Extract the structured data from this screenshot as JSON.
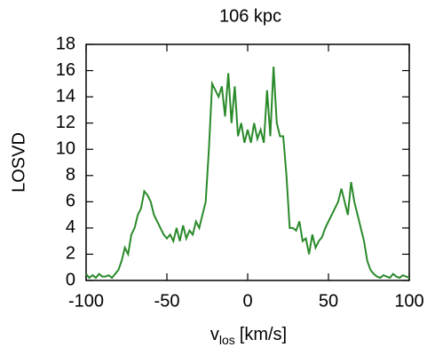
{
  "chart_data": {
    "type": "line",
    "title": "106 kpc",
    "xlabel": {
      "base": "v",
      "subscript": "los",
      "rest": "[km/s]"
    },
    "ylabel": "LOSVD",
    "x": [
      -100,
      -98,
      -96,
      -94,
      -92,
      -90,
      -88,
      -86,
      -84,
      -82,
      -80,
      -78,
      -76,
      -74,
      -72,
      -70,
      -68,
      -66,
      -64,
      -62,
      -60,
      -58,
      -56,
      -54,
      -52,
      -50,
      -48,
      -46,
      -44,
      -42,
      -40,
      -38,
      -36,
      -34,
      -32,
      -30,
      -28,
      -26,
      -24,
      -22,
      -20,
      -18,
      -16,
      -14,
      -12,
      -10,
      -8,
      -6,
      -4,
      -2,
      0,
      2,
      4,
      6,
      8,
      10,
      12,
      14,
      16,
      18,
      20,
      22,
      24,
      26,
      28,
      30,
      32,
      34,
      36,
      38,
      40,
      42,
      44,
      46,
      48,
      50,
      52,
      54,
      56,
      58,
      60,
      62,
      64,
      66,
      68,
      70,
      72,
      74,
      76,
      78,
      80,
      82,
      84,
      86,
      88,
      90,
      92,
      94,
      96,
      98,
      100
    ],
    "series": [
      {
        "name": "LOSVD",
        "color": "#2a8a2a",
        "values": [
          0.5,
          0.2,
          0.4,
          0.2,
          0.5,
          0.3,
          0.3,
          0.4,
          0.2,
          0.5,
          0.8,
          1.5,
          2.5,
          2.0,
          3.5,
          4.0,
          5.0,
          5.5,
          6.8,
          6.5,
          6.0,
          5.0,
          4.5,
          4.0,
          3.5,
          3.2,
          3.5,
          3.0,
          4.0,
          3.0,
          4.2,
          3.2,
          3.8,
          3.5,
          4.5,
          4.0,
          5.0,
          6.0,
          10.0,
          15.0,
          14.5,
          14.0,
          14.8,
          12.5,
          15.8,
          12.0,
          14.8,
          11.0,
          12.0,
          10.5,
          11.5,
          10.5,
          12.0,
          10.8,
          11.5,
          10.5,
          14.5,
          11.0,
          16.3,
          12.0,
          11.0,
          11.0,
          8.0,
          4.0,
          4.0,
          3.8,
          4.5,
          3.0,
          3.2,
          2.0,
          3.5,
          2.5,
          3.0,
          3.3,
          4.0,
          4.5,
          5.0,
          5.5,
          6.0,
          7.0,
          6.0,
          5.0,
          7.5,
          6.0,
          5.0,
          4.0,
          3.0,
          1.5,
          0.8,
          0.5,
          0.3,
          0.2,
          0.4,
          0.3,
          0.2,
          0.5,
          0.3,
          0.2,
          0.4,
          0.3,
          0.2
        ]
      }
    ],
    "xlim": [
      -100,
      100
    ],
    "xticks": [
      -100,
      -50,
      0,
      50,
      100
    ],
    "ylim": [
      0,
      18
    ],
    "yticks": [
      0,
      2,
      4,
      6,
      8,
      10,
      12,
      14,
      16,
      18
    ]
  }
}
